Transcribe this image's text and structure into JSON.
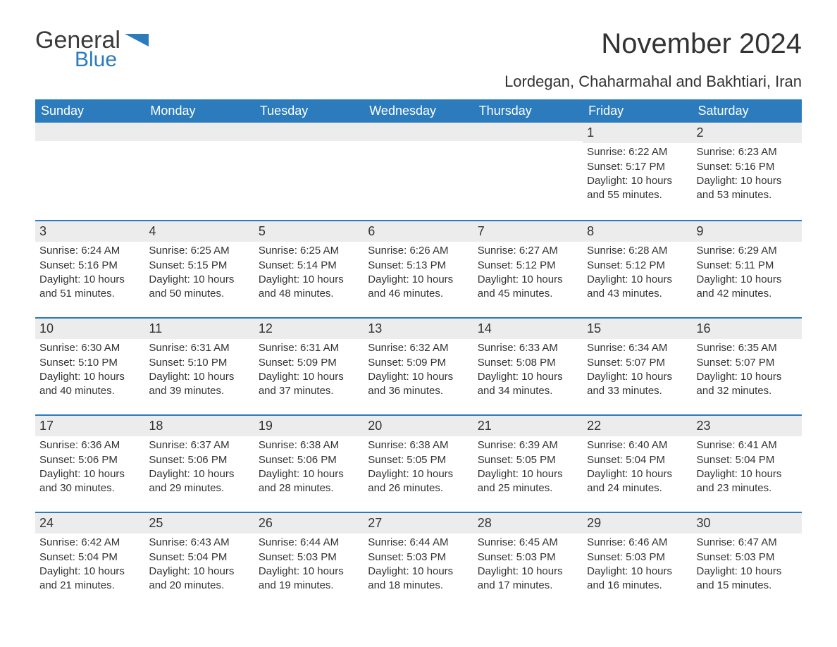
{
  "logo": {
    "general": "General",
    "blue": "Blue",
    "shape_color": "#2b7bbd"
  },
  "title": "November 2024",
  "location": "Lordegan, Chaharmahal and Bakhtiari, Iran",
  "colors": {
    "header_bg": "#2b7bbd",
    "header_text": "#ffffff",
    "row_border": "#2b7bbd",
    "daynum_bg": "#ececec",
    "text": "#333333",
    "background": "#ffffff"
  },
  "day_headers": [
    "Sunday",
    "Monday",
    "Tuesday",
    "Wednesday",
    "Thursday",
    "Friday",
    "Saturday"
  ],
  "weeks": [
    [
      null,
      null,
      null,
      null,
      null,
      {
        "n": "1",
        "sunrise": "Sunrise: 6:22 AM",
        "sunset": "Sunset: 5:17 PM",
        "dl1": "Daylight: 10 hours",
        "dl2": "and 55 minutes."
      },
      {
        "n": "2",
        "sunrise": "Sunrise: 6:23 AM",
        "sunset": "Sunset: 5:16 PM",
        "dl1": "Daylight: 10 hours",
        "dl2": "and 53 minutes."
      }
    ],
    [
      {
        "n": "3",
        "sunrise": "Sunrise: 6:24 AM",
        "sunset": "Sunset: 5:16 PM",
        "dl1": "Daylight: 10 hours",
        "dl2": "and 51 minutes."
      },
      {
        "n": "4",
        "sunrise": "Sunrise: 6:25 AM",
        "sunset": "Sunset: 5:15 PM",
        "dl1": "Daylight: 10 hours",
        "dl2": "and 50 minutes."
      },
      {
        "n": "5",
        "sunrise": "Sunrise: 6:25 AM",
        "sunset": "Sunset: 5:14 PM",
        "dl1": "Daylight: 10 hours",
        "dl2": "and 48 minutes."
      },
      {
        "n": "6",
        "sunrise": "Sunrise: 6:26 AM",
        "sunset": "Sunset: 5:13 PM",
        "dl1": "Daylight: 10 hours",
        "dl2": "and 46 minutes."
      },
      {
        "n": "7",
        "sunrise": "Sunrise: 6:27 AM",
        "sunset": "Sunset: 5:12 PM",
        "dl1": "Daylight: 10 hours",
        "dl2": "and 45 minutes."
      },
      {
        "n": "8",
        "sunrise": "Sunrise: 6:28 AM",
        "sunset": "Sunset: 5:12 PM",
        "dl1": "Daylight: 10 hours",
        "dl2": "and 43 minutes."
      },
      {
        "n": "9",
        "sunrise": "Sunrise: 6:29 AM",
        "sunset": "Sunset: 5:11 PM",
        "dl1": "Daylight: 10 hours",
        "dl2": "and 42 minutes."
      }
    ],
    [
      {
        "n": "10",
        "sunrise": "Sunrise: 6:30 AM",
        "sunset": "Sunset: 5:10 PM",
        "dl1": "Daylight: 10 hours",
        "dl2": "and 40 minutes."
      },
      {
        "n": "11",
        "sunrise": "Sunrise: 6:31 AM",
        "sunset": "Sunset: 5:10 PM",
        "dl1": "Daylight: 10 hours",
        "dl2": "and 39 minutes."
      },
      {
        "n": "12",
        "sunrise": "Sunrise: 6:31 AM",
        "sunset": "Sunset: 5:09 PM",
        "dl1": "Daylight: 10 hours",
        "dl2": "and 37 minutes."
      },
      {
        "n": "13",
        "sunrise": "Sunrise: 6:32 AM",
        "sunset": "Sunset: 5:09 PM",
        "dl1": "Daylight: 10 hours",
        "dl2": "and 36 minutes."
      },
      {
        "n": "14",
        "sunrise": "Sunrise: 6:33 AM",
        "sunset": "Sunset: 5:08 PM",
        "dl1": "Daylight: 10 hours",
        "dl2": "and 34 minutes."
      },
      {
        "n": "15",
        "sunrise": "Sunrise: 6:34 AM",
        "sunset": "Sunset: 5:07 PM",
        "dl1": "Daylight: 10 hours",
        "dl2": "and 33 minutes."
      },
      {
        "n": "16",
        "sunrise": "Sunrise: 6:35 AM",
        "sunset": "Sunset: 5:07 PM",
        "dl1": "Daylight: 10 hours",
        "dl2": "and 32 minutes."
      }
    ],
    [
      {
        "n": "17",
        "sunrise": "Sunrise: 6:36 AM",
        "sunset": "Sunset: 5:06 PM",
        "dl1": "Daylight: 10 hours",
        "dl2": "and 30 minutes."
      },
      {
        "n": "18",
        "sunrise": "Sunrise: 6:37 AM",
        "sunset": "Sunset: 5:06 PM",
        "dl1": "Daylight: 10 hours",
        "dl2": "and 29 minutes."
      },
      {
        "n": "19",
        "sunrise": "Sunrise: 6:38 AM",
        "sunset": "Sunset: 5:06 PM",
        "dl1": "Daylight: 10 hours",
        "dl2": "and 28 minutes."
      },
      {
        "n": "20",
        "sunrise": "Sunrise: 6:38 AM",
        "sunset": "Sunset: 5:05 PM",
        "dl1": "Daylight: 10 hours",
        "dl2": "and 26 minutes."
      },
      {
        "n": "21",
        "sunrise": "Sunrise: 6:39 AM",
        "sunset": "Sunset: 5:05 PM",
        "dl1": "Daylight: 10 hours",
        "dl2": "and 25 minutes."
      },
      {
        "n": "22",
        "sunrise": "Sunrise: 6:40 AM",
        "sunset": "Sunset: 5:04 PM",
        "dl1": "Daylight: 10 hours",
        "dl2": "and 24 minutes."
      },
      {
        "n": "23",
        "sunrise": "Sunrise: 6:41 AM",
        "sunset": "Sunset: 5:04 PM",
        "dl1": "Daylight: 10 hours",
        "dl2": "and 23 minutes."
      }
    ],
    [
      {
        "n": "24",
        "sunrise": "Sunrise: 6:42 AM",
        "sunset": "Sunset: 5:04 PM",
        "dl1": "Daylight: 10 hours",
        "dl2": "and 21 minutes."
      },
      {
        "n": "25",
        "sunrise": "Sunrise: 6:43 AM",
        "sunset": "Sunset: 5:04 PM",
        "dl1": "Daylight: 10 hours",
        "dl2": "and 20 minutes."
      },
      {
        "n": "26",
        "sunrise": "Sunrise: 6:44 AM",
        "sunset": "Sunset: 5:03 PM",
        "dl1": "Daylight: 10 hours",
        "dl2": "and 19 minutes."
      },
      {
        "n": "27",
        "sunrise": "Sunrise: 6:44 AM",
        "sunset": "Sunset: 5:03 PM",
        "dl1": "Daylight: 10 hours",
        "dl2": "and 18 minutes."
      },
      {
        "n": "28",
        "sunrise": "Sunrise: 6:45 AM",
        "sunset": "Sunset: 5:03 PM",
        "dl1": "Daylight: 10 hours",
        "dl2": "and 17 minutes."
      },
      {
        "n": "29",
        "sunrise": "Sunrise: 6:46 AM",
        "sunset": "Sunset: 5:03 PM",
        "dl1": "Daylight: 10 hours",
        "dl2": "and 16 minutes."
      },
      {
        "n": "30",
        "sunrise": "Sunrise: 6:47 AM",
        "sunset": "Sunset: 5:03 PM",
        "dl1": "Daylight: 10 hours",
        "dl2": "and 15 minutes."
      }
    ]
  ]
}
